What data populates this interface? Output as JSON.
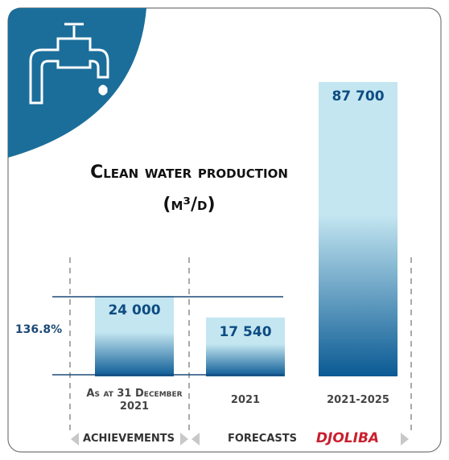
{
  "chart_data": {
    "type": "bar",
    "title": "Clean water production (m³/d)",
    "categories": [
      "As at 31 December 2021",
      "2021",
      "2021-2025"
    ],
    "values": [
      24000,
      17540,
      87700
    ],
    "value_labels": [
      "24 000",
      "17 540",
      "87 700"
    ],
    "annotation": "136.8%",
    "groups": [
      "ACHIEVEMENTS",
      "FORECASTS"
    ],
    "brand": "DJOLIBA",
    "color_top": "#c4e6f1",
    "color_bottom": "#0a5a94"
  }
}
